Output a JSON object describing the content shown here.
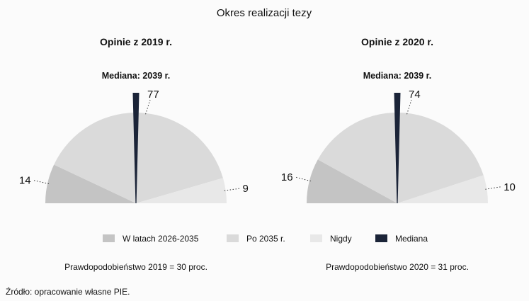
{
  "title": "Okres realizacji tezy",
  "source": "Źródło: opracowanie własne PIE.",
  "colors": {
    "w_latach": "#c4c4c4",
    "po_2035": "#dadada",
    "nigdy": "#e8e8e8",
    "mediana": "#1b2438"
  },
  "legend": [
    {
      "label": "W latach 2026-2035",
      "key": "w_latach"
    },
    {
      "label": "Po 2035 r.",
      "key": "po_2035"
    },
    {
      "label": "Nigdy",
      "key": "nigdy"
    },
    {
      "label": "Mediana",
      "key": "mediana"
    }
  ],
  "chart_data": [
    {
      "type": "pie",
      "title": "Opinie z 2019 r.",
      "subtitle": "Mediana: 2039 r.",
      "categories": [
        "W latach 2026-2035",
        "Po 2035 r.",
        "Nigdy"
      ],
      "values": [
        14,
        77,
        9
      ],
      "median_position": 0.5,
      "note": "Prawdopodobieństwo 2019 = 30 proc."
    },
    {
      "type": "pie",
      "title": "Opinie z 2020 r.",
      "subtitle": "Mediana: 2039 r.",
      "categories": [
        "W latach 2026-2035",
        "Po 2035 r.",
        "Nigdy"
      ],
      "values": [
        16,
        74,
        10
      ],
      "median_position": 0.5,
      "note": "Prawdopodobieństwo 2020 = 31 proc."
    }
  ]
}
